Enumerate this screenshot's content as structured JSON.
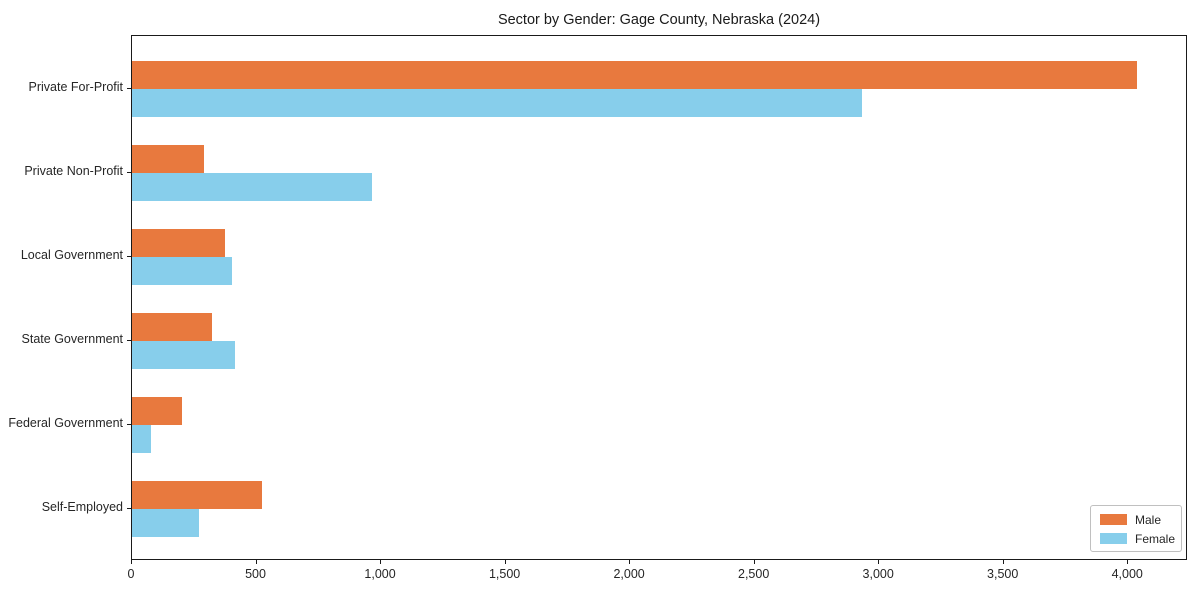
{
  "chart_data": {
    "type": "bar",
    "orientation": "horizontal",
    "title": "Sector by Gender: Gage County, Nebraska (2024)",
    "categories": [
      "Private For-Profit",
      "Private Non-Profit",
      "Local Government",
      "State Government",
      "Federal Government",
      "Self-Employed"
    ],
    "series": [
      {
        "name": "Male",
        "color": "#e8793e",
        "values": [
          4035,
          290,
          375,
          320,
          200,
          520
        ]
      },
      {
        "name": "Female",
        "color": "#87ceeb",
        "values": [
          2930,
          965,
          400,
          415,
          75,
          270
        ]
      }
    ],
    "xlabel": "",
    "ylabel": "",
    "xlim": [
      0,
      4240
    ],
    "xticks": [
      0,
      500,
      1000,
      1500,
      2000,
      2500,
      3000,
      3500,
      4000
    ],
    "xtick_labels": [
      "0",
      "500",
      "1,000",
      "1,500",
      "2,000",
      "2,500",
      "3,000",
      "3,500",
      "4,000"
    ],
    "grid": false,
    "legend_position": "lower right"
  },
  "legend": {
    "items": [
      {
        "label": "Male"
      },
      {
        "label": "Female"
      }
    ]
  }
}
